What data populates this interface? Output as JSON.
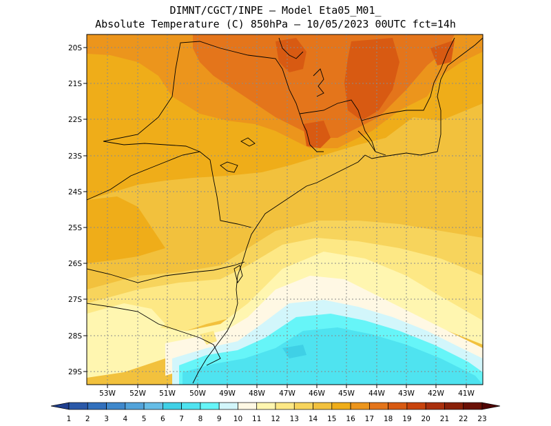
{
  "header": {
    "line1": "DIMNT/CGCT/INPE –  Model Eta05_M01_",
    "line2": "Absolute Temperature (C) 850hPa –  10/05/2023 00UTC fct=14h"
  },
  "axes": {
    "lat_labels": [
      "20S",
      "21S",
      "22S",
      "23S",
      "24S",
      "25S",
      "26S",
      "27S",
      "28S",
      "29S"
    ],
    "lon_labels": [
      "53W",
      "52W",
      "51W",
      "50W",
      "49W",
      "48W",
      "47W",
      "46W",
      "45W",
      "44W",
      "43W",
      "42W",
      "41W"
    ]
  },
  "colorbar": {
    "labels": [
      "1",
      "2",
      "3",
      "4",
      "5",
      "6",
      "7",
      "8",
      "9",
      "10",
      "11",
      "12",
      "13",
      "14",
      "15",
      "16",
      "17",
      "18",
      "19",
      "20",
      "21",
      "22",
      "23"
    ],
    "colors": [
      "#1f3f8f",
      "#2a58a8",
      "#3170bd",
      "#3f88cc",
      "#52a3da",
      "#66bde6",
      "#3fd0e6",
      "#4fe3f0",
      "#66f5f8",
      "#d2f6fb",
      "#fff8e4",
      "#fff6b0",
      "#fde885",
      "#f7d45c",
      "#f2c13d",
      "#efad19",
      "#ec951c",
      "#e4751b",
      "#d85a12",
      "#c8430c",
      "#a92f0c",
      "#892008",
      "#6a1005",
      "#4f0504"
    ]
  },
  "map": {
    "region": "Southeastern/Southern Brazil",
    "field_colors": {
      "t13": "#fde885",
      "t14": "#f7d45c",
      "t15": "#f2c13d",
      "t16": "#efad19",
      "t17": "#ec951c",
      "t18": "#e4751b",
      "t19": "#d85a12",
      "t12": "#fff6b0",
      "t11": "#fff8e4",
      "t10": "#d2f6fb",
      "t9": "#66f5f8",
      "t8": "#4fe3f0",
      "t20": "#c8430c"
    }
  }
}
